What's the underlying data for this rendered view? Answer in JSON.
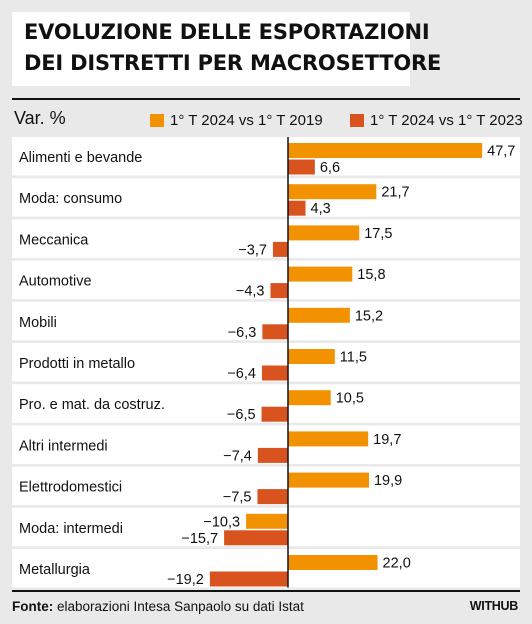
{
  "title": {
    "line1": "EVOLUZIONE DELLE ESPORTAZIONI",
    "line2": "DEI DISTRETTI PER MACROSETTORE"
  },
  "unit_label": "Var. %",
  "footer": {
    "source_label": "Fonte:",
    "source_text": " elaborazioni Intesa Sanpaolo su dati Istat",
    "logo": "WITHUB"
  },
  "colors": {
    "series1": "#f39200",
    "series2": "#d9531e",
    "row_band": "#ffffff",
    "background": "#e9e9e9"
  },
  "chart_data": {
    "type": "bar",
    "orientation": "horizontal",
    "categories": [
      "Alimenti e bevande",
      "Moda: consumo",
      "Meccanica",
      "Automotive",
      "Mobili",
      "Prodotti in metallo",
      "Pro. e mat. da costruz.",
      "Altri intermedi",
      "Elettrodomestici",
      "Moda: intermedi",
      "Metallurgia"
    ],
    "series": [
      {
        "name": "1° T 2024 vs 1° T 2019",
        "values": [
          47.7,
          21.7,
          17.5,
          15.8,
          15.2,
          11.5,
          10.5,
          19.7,
          19.9,
          -10.3,
          22.0
        ],
        "labels": [
          "47,7",
          "21,7",
          "17,5",
          "15,8",
          "15,2",
          "11,5",
          "10,5",
          "19,7",
          "19,9",
          "−10,3",
          "22,0"
        ]
      },
      {
        "name": "1° T 2024 vs 1° T 2023",
        "values": [
          6.6,
          4.3,
          -3.7,
          -4.3,
          -6.3,
          -6.4,
          -6.5,
          -7.4,
          -7.5,
          -15.7,
          -19.2
        ],
        "labels": [
          "6,6",
          "4,3",
          "−3,7",
          "−4,3",
          "−6,3",
          "−6,4",
          "−6,5",
          "−7,4",
          "−7,5",
          "−15,7",
          "−19,2"
        ]
      }
    ],
    "xlim": [
      -19.2,
      47.7
    ],
    "grid": false,
    "legend_position": "top"
  }
}
